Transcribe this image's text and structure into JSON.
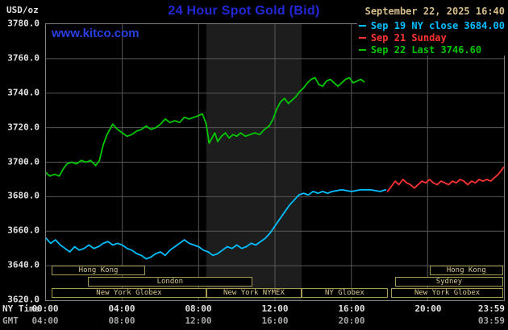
{
  "header": {
    "unit_label": "USD/oz",
    "title": "24 Hour Spot Gold (Bid)",
    "title_color": "#2228d8",
    "datetime": "September 22, 2025 16:40",
    "datetime_color": "#d6bd8b"
  },
  "watermark": {
    "text": "www.kitco.com",
    "color": "#2a3fe4"
  },
  "legend": {
    "items": [
      {
        "text": "Sep 19 NY close 3684.00",
        "color": "#00bfff"
      },
      {
        "text": "Sep 21 Sunday",
        "color": "#ff3333"
      },
      {
        "text": "Sep 22 Last 3746.60",
        "color": "#00c800"
      }
    ]
  },
  "axes": {
    "ny_time_label": "NY Time",
    "gmt_label": "GMT",
    "y_ticks": [
      {
        "value": 3780,
        "label": "3780.0"
      },
      {
        "value": 3760,
        "label": "3760.0"
      },
      {
        "value": 3740,
        "label": "3740.0"
      },
      {
        "value": 3720,
        "label": "3720.0"
      },
      {
        "value": 3700,
        "label": "3700.0"
      },
      {
        "value": 3680,
        "label": "3680.0"
      },
      {
        "value": 3660,
        "label": "3660.0"
      },
      {
        "value": 3640,
        "label": "3640.0"
      },
      {
        "value": 3620,
        "label": "3620.0"
      }
    ],
    "ny_ticks": [
      {
        "hour": 0,
        "label": "00:00"
      },
      {
        "hour": 4,
        "label": "04:00"
      },
      {
        "hour": 8,
        "label": "08:00"
      },
      {
        "hour": 12,
        "label": "12:00"
      },
      {
        "hour": 16,
        "label": "16:00"
      },
      {
        "hour": 20,
        "label": "20:00"
      },
      {
        "hour": 23.98,
        "label": "23:59"
      }
    ],
    "gmt_ticks": [
      {
        "hour": 0,
        "label": "04:00"
      },
      {
        "hour": 4,
        "label": "08:00"
      },
      {
        "hour": 8,
        "label": "12:00"
      },
      {
        "hour": 12,
        "label": "16:00"
      },
      {
        "hour": 16,
        "label": "20:00"
      },
      {
        "hour": 23.98,
        "label": "03:59"
      }
    ]
  },
  "chart_data": {
    "type": "line",
    "title": "24 Hour Spot Gold (Bid)",
    "xlabel": "NY Time (hours)",
    "ylabel": "USD/oz",
    "xlim": [
      0,
      24
    ],
    "ylim": [
      3620,
      3780
    ],
    "y_gridlines": [
      3640,
      3660,
      3680,
      3700,
      3720,
      3740,
      3760
    ],
    "x_gridlines": [
      4,
      8,
      12,
      16,
      20
    ],
    "grid": true,
    "legend_position": "top-right",
    "shaded_region": {
      "x0": 8.4,
      "x1": 13.4,
      "color": "#1d1d1d"
    },
    "colors": {
      "grid": "#585858",
      "border": "#808080",
      "background": "#000000",
      "session_border": "#a59a52",
      "session_text": "#d8c88e"
    },
    "series": [
      {
        "id": "sep19",
        "name": "Sep 19 NY close 3684.00",
        "color": "#00bfff",
        "points": [
          [
            0,
            3656
          ],
          [
            0.25,
            3653
          ],
          [
            0.5,
            3655
          ],
          [
            0.75,
            3652
          ],
          [
            1,
            3650
          ],
          [
            1.25,
            3648
          ],
          [
            1.5,
            3651
          ],
          [
            1.75,
            3649
          ],
          [
            2,
            3650
          ],
          [
            2.25,
            3652
          ],
          [
            2.5,
            3650
          ],
          [
            2.75,
            3651
          ],
          [
            3,
            3653
          ],
          [
            3.25,
            3654
          ],
          [
            3.5,
            3652
          ],
          [
            3.75,
            3653
          ],
          [
            4,
            3652
          ],
          [
            4.25,
            3650
          ],
          [
            4.5,
            3649
          ],
          [
            4.75,
            3647
          ],
          [
            5,
            3646
          ],
          [
            5.25,
            3644
          ],
          [
            5.5,
            3645
          ],
          [
            5.75,
            3647
          ],
          [
            6,
            3648
          ],
          [
            6.25,
            3646
          ],
          [
            6.5,
            3649
          ],
          [
            6.75,
            3651
          ],
          [
            7,
            3653
          ],
          [
            7.25,
            3655
          ],
          [
            7.5,
            3653
          ],
          [
            7.75,
            3652
          ],
          [
            8,
            3651
          ],
          [
            8.25,
            3649
          ],
          [
            8.5,
            3648
          ],
          [
            8.75,
            3646
          ],
          [
            9,
            3647
          ],
          [
            9.25,
            3649
          ],
          [
            9.5,
            3651
          ],
          [
            9.75,
            3650
          ],
          [
            10,
            3652
          ],
          [
            10.25,
            3650
          ],
          [
            10.5,
            3651
          ],
          [
            10.75,
            3653
          ],
          [
            11,
            3652
          ],
          [
            11.25,
            3654
          ],
          [
            11.5,
            3656
          ],
          [
            11.75,
            3659
          ],
          [
            12,
            3663
          ],
          [
            12.25,
            3667
          ],
          [
            12.5,
            3671
          ],
          [
            12.75,
            3675
          ],
          [
            13,
            3678
          ],
          [
            13.25,
            3681
          ],
          [
            13.5,
            3682
          ],
          [
            13.75,
            3681
          ],
          [
            14,
            3683
          ],
          [
            14.25,
            3682
          ],
          [
            14.5,
            3683
          ],
          [
            14.75,
            3682
          ],
          [
            15,
            3683
          ],
          [
            15.5,
            3684
          ],
          [
            16,
            3683
          ],
          [
            16.5,
            3684
          ],
          [
            17,
            3684
          ],
          [
            17.5,
            3683
          ],
          [
            17.8,
            3684
          ]
        ]
      },
      {
        "id": "sep21",
        "name": "Sep 21 Sunday",
        "color": "#ff3333",
        "points": [
          [
            17.9,
            3683
          ],
          [
            18.1,
            3686
          ],
          [
            18.3,
            3689
          ],
          [
            18.5,
            3687
          ],
          [
            18.7,
            3690
          ],
          [
            18.9,
            3688
          ],
          [
            19.1,
            3687
          ],
          [
            19.3,
            3685
          ],
          [
            19.5,
            3687
          ],
          [
            19.7,
            3689
          ],
          [
            19.9,
            3688
          ],
          [
            20.1,
            3690
          ],
          [
            20.3,
            3688
          ],
          [
            20.5,
            3687
          ],
          [
            20.7,
            3689
          ],
          [
            20.9,
            3688
          ],
          [
            21.1,
            3687
          ],
          [
            21.3,
            3689
          ],
          [
            21.5,
            3688
          ],
          [
            21.7,
            3690
          ],
          [
            21.9,
            3689
          ],
          [
            22.1,
            3687
          ],
          [
            22.3,
            3689
          ],
          [
            22.5,
            3688
          ],
          [
            22.7,
            3690
          ],
          [
            22.9,
            3689
          ],
          [
            23.1,
            3690
          ],
          [
            23.3,
            3689
          ],
          [
            23.5,
            3691
          ],
          [
            23.7,
            3693
          ],
          [
            23.85,
            3695
          ],
          [
            23.98,
            3697
          ]
        ]
      },
      {
        "id": "sep22",
        "name": "Sep 22 Last 3746.60",
        "color": "#00c800",
        "points": [
          [
            0,
            3694
          ],
          [
            0.2,
            3692
          ],
          [
            0.45,
            3693
          ],
          [
            0.7,
            3692
          ],
          [
            0.9,
            3696
          ],
          [
            1.1,
            3699
          ],
          [
            1.35,
            3700
          ],
          [
            1.6,
            3699
          ],
          [
            1.85,
            3701
          ],
          [
            2.1,
            3700
          ],
          [
            2.35,
            3701
          ],
          [
            2.6,
            3698
          ],
          [
            2.8,
            3701
          ],
          [
            3,
            3710
          ],
          [
            3.2,
            3716
          ],
          [
            3.5,
            3722
          ],
          [
            3.75,
            3719
          ],
          [
            4,
            3717
          ],
          [
            4.25,
            3715
          ],
          [
            4.5,
            3716
          ],
          [
            4.75,
            3718
          ],
          [
            5,
            3719
          ],
          [
            5.25,
            3721
          ],
          [
            5.5,
            3719
          ],
          [
            5.75,
            3720
          ],
          [
            6,
            3722
          ],
          [
            6.25,
            3725
          ],
          [
            6.5,
            3723
          ],
          [
            6.75,
            3724
          ],
          [
            7,
            3723
          ],
          [
            7.25,
            3726
          ],
          [
            7.5,
            3725
          ],
          [
            7.75,
            3726
          ],
          [
            8,
            3727
          ],
          [
            8.2,
            3728
          ],
          [
            8.4,
            3722
          ],
          [
            8.55,
            3711
          ],
          [
            8.7,
            3714
          ],
          [
            8.85,
            3717
          ],
          [
            9,
            3712
          ],
          [
            9.2,
            3715
          ],
          [
            9.4,
            3717
          ],
          [
            9.6,
            3714
          ],
          [
            9.8,
            3716
          ],
          [
            10,
            3715
          ],
          [
            10.2,
            3717
          ],
          [
            10.45,
            3715
          ],
          [
            10.7,
            3716
          ],
          [
            10.95,
            3717
          ],
          [
            11.2,
            3716
          ],
          [
            11.45,
            3719
          ],
          [
            11.7,
            3721
          ],
          [
            11.9,
            3725
          ],
          [
            12.1,
            3731
          ],
          [
            12.3,
            3735
          ],
          [
            12.5,
            3737
          ],
          [
            12.7,
            3734
          ],
          [
            12.9,
            3736
          ],
          [
            13.1,
            3738
          ],
          [
            13.3,
            3741
          ],
          [
            13.5,
            3743
          ],
          [
            13.7,
            3746
          ],
          [
            13.9,
            3748
          ],
          [
            14.1,
            3749
          ],
          [
            14.3,
            3745
          ],
          [
            14.5,
            3744
          ],
          [
            14.7,
            3747
          ],
          [
            14.9,
            3748
          ],
          [
            15.1,
            3746
          ],
          [
            15.3,
            3744
          ],
          [
            15.5,
            3746
          ],
          [
            15.7,
            3748
          ],
          [
            15.9,
            3749
          ],
          [
            16.1,
            3746
          ],
          [
            16.3,
            3747
          ],
          [
            16.5,
            3748
          ],
          [
            16.67,
            3746.6
          ]
        ]
      }
    ],
    "sessions": [
      {
        "row": 0,
        "label": "Hong Kong",
        "start": 0.3,
        "end": 5.2
      },
      {
        "row": 0,
        "label": "Hong Kong",
        "start": 20.1,
        "end": 23.95
      },
      {
        "row": 1,
        "label": "London",
        "start": 2.2,
        "end": 10.8
      },
      {
        "row": 1,
        "label": "Sydney",
        "start": 18.3,
        "end": 23.95
      },
      {
        "row": 2,
        "label": "New York Globex",
        "start": 0.3,
        "end": 8.4
      },
      {
        "row": 2,
        "label": "New York NYMEX",
        "start": 8.4,
        "end": 13.4
      },
      {
        "row": 2,
        "label": "NY Globex",
        "start": 13.4,
        "end": 17.9
      },
      {
        "row": 2,
        "label": "New York Globex",
        "start": 18.1,
        "end": 23.95
      }
    ]
  }
}
